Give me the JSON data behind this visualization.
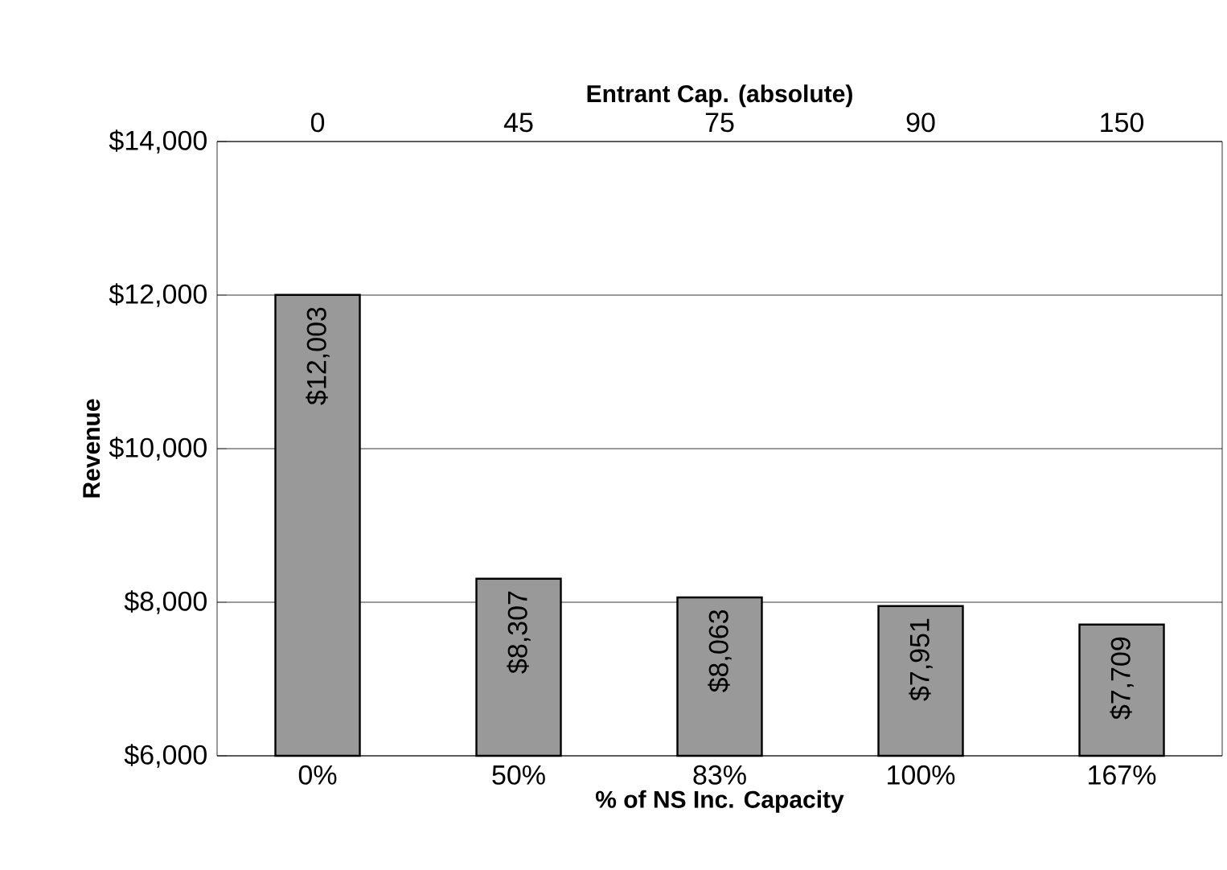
{
  "chart_data": {
    "type": "bar",
    "xlabel": "% of NS Inc. Capacity",
    "ylabel": "Revenue",
    "x2label": "Entrant Cap. (absolute)",
    "categories": [
      "0%",
      "50%",
      "83%",
      "100%",
      "167%"
    ],
    "values": [
      12003,
      8307,
      8063,
      7951,
      7709
    ],
    "value_labels": [
      "$12,003",
      "$8,307",
      "$8,063",
      "$7,951",
      "$7,709"
    ],
    "color": "#999999",
    "ylim": [
      6000,
      14000
    ],
    "yticks": [
      {
        "value": 6000,
        "label": "$6,000"
      },
      {
        "value": 8000,
        "label": "$8,000"
      },
      {
        "value": 10000,
        "label": "$10,000"
      },
      {
        "value": 12000,
        "label": "$12,000"
      },
      {
        "value": 14000,
        "label": "$14,000"
      }
    ],
    "annotations": [
      "0",
      "45",
      "75",
      "90",
      "150"
    ],
    "grid": "y"
  }
}
